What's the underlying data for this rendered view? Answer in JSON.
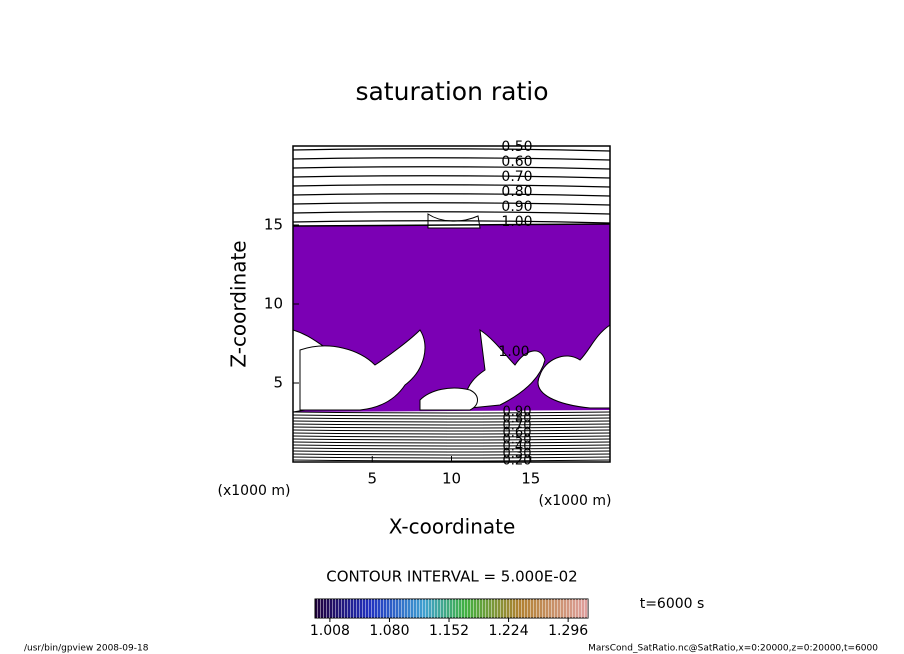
{
  "chart_data": {
    "type": "contour",
    "title": "saturation ratio",
    "xlabel": "X-coordinate",
    "ylabel": "Z-coordinate",
    "xlabel_unit": "(x1000 m)",
    "ylabel_unit": "(x1000 m)",
    "xlim": [
      0,
      20
    ],
    "xticks": [
      5,
      10,
      15
    ],
    "ylim": [
      0,
      20
    ],
    "yticks": [
      5,
      10,
      15
    ],
    "fill_color": "#7b00b4",
    "contour_labels_top": [
      "0.50",
      "0.60",
      "0.70",
      "0.80",
      "0.90",
      "1.00"
    ],
    "contour_label_mid": "1.00",
    "contour_labels_bottom": [
      "0.90",
      "0.80",
      "0.70",
      "0.60",
      "0.50",
      "0.40",
      "0.30",
      "0.20"
    ],
    "contour_interval": "CONTOUR INTERVAL = 5.000E-02",
    "clim": [
      0.99,
      1.32
    ],
    "cticks": [
      1.008,
      {
        "value": 1.08,
        "label": "1.080"
      },
      1.152,
      1.224,
      1.296
    ],
    "time_label": "t=6000 s",
    "footer_left": "/usr/bin/gpview   2008-09-18",
    "footer_right": "MarsCond_SatRatio.nc@SatRatio,x=0:20000,z=0:20000,t=6000"
  }
}
